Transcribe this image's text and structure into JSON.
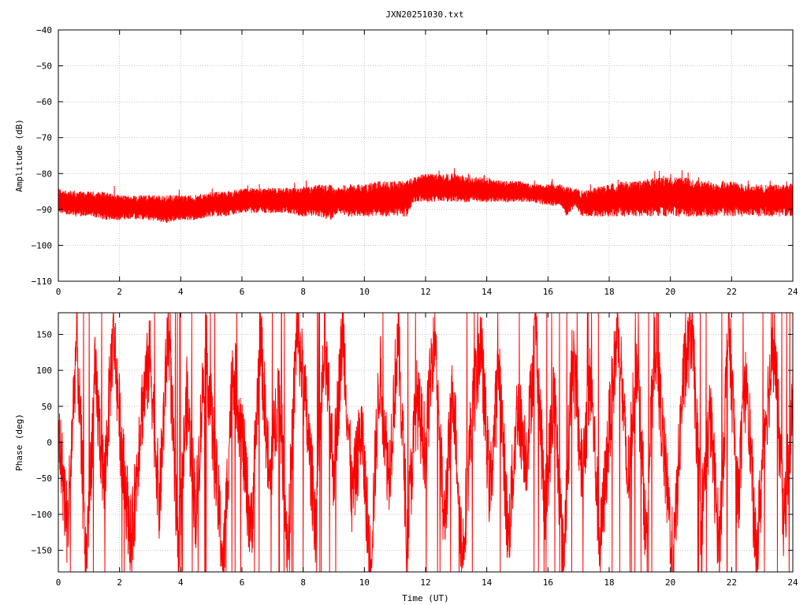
{
  "title": "JXN20251030.txt",
  "colors": {
    "series": "#ff0000",
    "axis": "#000000",
    "grid": "#a0a0a0",
    "background": "#ffffff"
  },
  "chart_data": [
    {
      "type": "line",
      "title": "JXN20251030.txt",
      "xlabel": "",
      "ylabel": "Amplitude (dB)",
      "xlim": [
        0,
        24
      ],
      "ylim": [
        -110,
        -40
      ],
      "xticks": [
        0,
        2,
        4,
        6,
        8,
        10,
        12,
        14,
        16,
        18,
        20,
        22,
        24
      ],
      "yticks": [
        -110,
        -100,
        -90,
        -80,
        -70,
        -60,
        -50,
        -40
      ],
      "grid": true,
      "legend": "none",
      "series": [
        {
          "style": "noisy band (envelope shown as upper/lower)",
          "x": [
            0,
            0.5,
            1,
            1.5,
            2,
            2.5,
            3,
            3.5,
            4,
            4.5,
            5,
            5.5,
            6,
            6.5,
            7,
            7.5,
            8,
            8.5,
            8.9,
            9.1,
            9.5,
            10,
            10.5,
            11,
            11.4,
            11.6,
            12,
            12.5,
            13,
            13.5,
            14,
            14.5,
            15,
            15.5,
            16,
            16.4,
            16.6,
            16.9,
            17.1,
            17.5,
            18,
            18.5,
            19,
            19.5,
            20,
            20.5,
            21,
            21.5,
            22,
            22.5,
            23,
            23.5,
            24
          ],
          "upper": [
            -84,
            -85,
            -85,
            -85,
            -86,
            -86,
            -86,
            -86,
            -86,
            -86,
            -85,
            -85,
            -84,
            -84,
            -84,
            -84,
            -84,
            -83,
            -83,
            -84,
            -83,
            -83,
            -82,
            -82,
            -82,
            -81,
            -80,
            -80,
            -80,
            -81,
            -81,
            -82,
            -82,
            -83,
            -83,
            -83,
            -84,
            -84,
            -85,
            -84,
            -83,
            -82,
            -82,
            -81,
            -81,
            -81,
            -82,
            -82,
            -82,
            -83,
            -83,
            -83,
            -83
          ],
          "lower": [
            -91,
            -92,
            -92,
            -93,
            -93,
            -93,
            -93,
            -94,
            -93,
            -93,
            -92,
            -92,
            -91,
            -91,
            -91,
            -91,
            -92,
            -92,
            -93,
            -91,
            -92,
            -92,
            -92,
            -92,
            -92,
            -88,
            -88,
            -88,
            -88,
            -88,
            -88,
            -88,
            -88,
            -88,
            -89,
            -89,
            -92,
            -89,
            -92,
            -92,
            -92,
            -92,
            -92,
            -92,
            -92,
            -92,
            -92,
            -92,
            -92,
            -92,
            -92,
            -92,
            -92
          ]
        }
      ]
    },
    {
      "type": "line",
      "title": "",
      "xlabel": "Time (UT)",
      "ylabel": "Phase (deg)",
      "xlim": [
        0,
        24
      ],
      "ylim": [
        -180,
        180
      ],
      "xticks": [
        0,
        2,
        4,
        6,
        8,
        10,
        12,
        14,
        16,
        18,
        20,
        22,
        24
      ],
      "yticks": [
        -150,
        -100,
        -50,
        0,
        50,
        100,
        150
      ],
      "grid": true,
      "legend": "none",
      "series": [
        {
          "style": "dense oscillating trace wrapping between -180 and 180",
          "x": [
            0,
            0.3,
            0.6,
            0.9,
            1.2,
            1.5,
            1.8,
            2.1,
            2.4,
            2.7,
            3.0,
            3.3,
            3.6,
            3.9,
            4.2,
            4.5,
            4.8,
            5.1,
            5.4,
            5.7,
            6.0,
            6.3,
            6.6,
            6.9,
            7.2,
            7.5,
            7.8,
            8.1,
            8.4,
            8.7,
            9.0,
            9.3,
            9.6,
            9.9,
            10.2,
            10.5,
            10.8,
            11.1,
            11.4,
            11.7,
            12.0,
            12.3,
            12.6,
            12.9,
            13.2,
            13.5,
            13.8,
            14.1,
            14.4,
            14.7,
            15.0,
            15.3,
            15.6,
            15.9,
            16.2,
            16.5,
            16.8,
            17.1,
            17.4,
            17.7,
            18.0,
            18.3,
            18.6,
            18.9,
            19.2,
            19.5,
            19.8,
            20.1,
            20.4,
            20.7,
            21.0,
            21.3,
            21.6,
            21.9,
            22.2,
            22.5,
            22.8,
            23.1,
            23.4,
            23.7,
            24.0
          ],
          "values": [
            20,
            -120,
            150,
            -170,
            90,
            -60,
            160,
            -30,
            -140,
            40,
            120,
            -90,
            170,
            -160,
            60,
            -100,
            140,
            -20,
            -170,
            110,
            10,
            -130,
            150,
            -60,
            80,
            -150,
            170,
            40,
            -110,
            130,
            -40,
            160,
            -80,
            20,
            -170,
            100,
            -50,
            150,
            -130,
            60,
            -10,
            170,
            -120,
            80,
            -160,
            30,
            140,
            -70,
            110,
            -140,
            50,
            -20,
            160,
            -100,
            70,
            -170,
            130,
            -40,
            90,
            -150,
            20,
            170,
            -60,
            120,
            -130,
            150,
            -20,
            -170,
            80,
            160,
            -110,
            40,
            -150,
            170,
            -80,
            100,
            -170,
            30,
            140,
            -120,
            60
          ]
        }
      ]
    }
  ]
}
